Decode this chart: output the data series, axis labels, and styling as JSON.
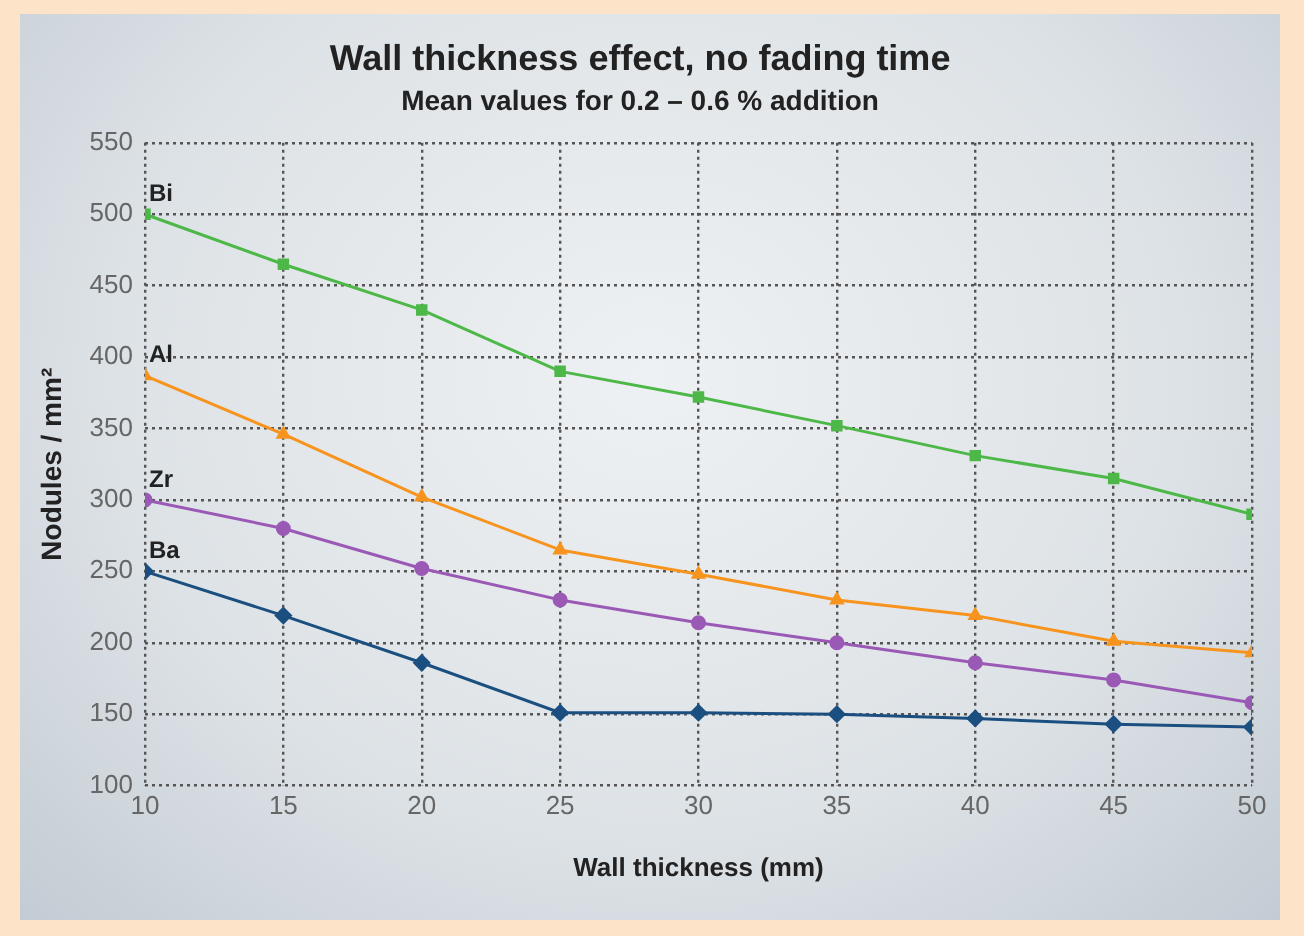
{
  "chart_data": {
    "type": "line",
    "title": "Wall thickness effect, no fading time",
    "subtitle": "Mean values for 0.2 – 0.6 % addition",
    "xlabel": "Wall thickness (mm)",
    "ylabel": "Nodules / mm²",
    "x": [
      10,
      15,
      20,
      25,
      30,
      35,
      40,
      45,
      50
    ],
    "xlim": [
      10,
      50
    ],
    "xticks": [
      10,
      15,
      20,
      25,
      30,
      35,
      40,
      45,
      50
    ],
    "ylim": [
      100,
      550
    ],
    "yticks": [
      100,
      150,
      200,
      250,
      300,
      350,
      400,
      450,
      500,
      550
    ],
    "grid": true,
    "legend": false,
    "series": [
      {
        "name": "Bi",
        "color": "#4db848",
        "marker": "square",
        "values": [
          500,
          465,
          433,
          390,
          372,
          352,
          331,
          315,
          290
        ]
      },
      {
        "name": "Al",
        "color": "#f7941d",
        "marker": "triangle",
        "values": [
          387,
          346,
          302,
          265,
          248,
          230,
          219,
          201,
          193
        ]
      },
      {
        "name": "Zr",
        "color": "#9b59b6",
        "marker": "circle",
        "values": [
          300,
          280,
          252,
          230,
          214,
          200,
          186,
          174,
          158
        ]
      },
      {
        "name": "Ba",
        "color": "#1b4f80",
        "marker": "diamond",
        "values": [
          250,
          219,
          186,
          151,
          151,
          150,
          147,
          143,
          141
        ]
      }
    ]
  }
}
